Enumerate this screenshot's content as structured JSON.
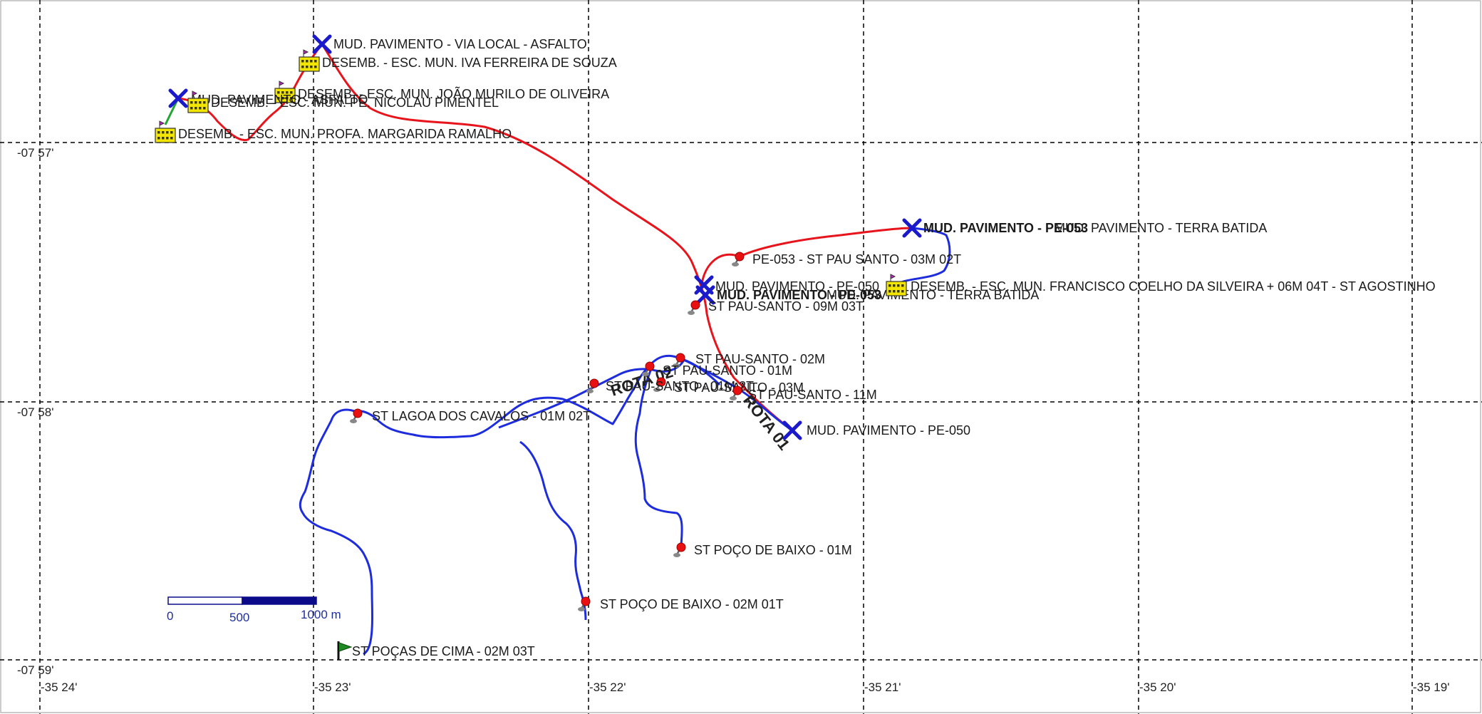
{
  "map": {
    "lon_labels": [
      "-35 24'",
      "-35 23'",
      "-35 22'",
      "-35 21'",
      "-35 20'",
      "-35 19'"
    ],
    "lat_labels": [
      "-07 57'",
      "-07 58'",
      "-07 59'"
    ],
    "scale_bar": {
      "labels": [
        "0",
        "500",
        "1000 m"
      ]
    },
    "route_labels": [
      "ROTA 02",
      "ROTA 01"
    ],
    "colors": {
      "route_red": "#e8141c",
      "route_blue": "#1d2cdc",
      "route_green": "#22a632",
      "marker_x": "#1a1acc",
      "marker_pin": "#e81010",
      "school_icon": "#f2e600"
    },
    "places": [
      {
        "icon": "x-marker",
        "text": "MUD. PAVIMENTO - VIA LOCAL - ASFALTO",
        "bold": false
      },
      {
        "icon": "school-icon",
        "text": "DESEMB. - ESC. MUN. IVA FERREIRA DE SOUZA",
        "bold": false
      },
      {
        "icon": "school-icon",
        "text": "DESEMB. - ESC. MUN. JOÃO MURILO DE OLIVEIRA",
        "bold": false
      },
      {
        "icon": "x-marker",
        "text": "MUD. PAVIMENTO - ASFALTO",
        "bold": false
      },
      {
        "icon": "school-icon",
        "text": "DESEMB. - ESC. MUN. PE. NICOLAU PIMENTEL",
        "bold": false
      },
      {
        "icon": "school-icon",
        "text": "DESEMB. - ESC. MUN. PROFA. MARGARIDA RAMALHO",
        "bold": false
      },
      {
        "icon": "x-marker",
        "text": "MUD. PAVIMENTO - PE-053",
        "bold": true
      },
      {
        "icon": "none",
        "text": "MUD. PAVIMENTO - TERRA BATIDA",
        "bold": false
      },
      {
        "icon": "pin-icon",
        "text": "PE-053 - ST PAU SANTO - 03M 02T",
        "bold": false
      },
      {
        "icon": "x-marker",
        "text": "MUD. PAVIMENTO - PE-050",
        "bold": false
      },
      {
        "icon": "x-marker",
        "text": "MUD. PAVIMENTO - PE-053",
        "bold": true
      },
      {
        "icon": "none",
        "text": "MUD. PAVIMENTO - TERRA BATIDA",
        "bold": false
      },
      {
        "icon": "school-icon",
        "text": "DESEMB. - ESC. MUN. FRANCISCO COELHO DA SILVEIRA + 06M 04T - ST AGOSTINHO",
        "bold": false
      },
      {
        "icon": "pin-icon",
        "text": "ST PAU-SANTO - 09M 03T",
        "bold": false
      },
      {
        "icon": "pin-icon",
        "text": "ST PAU-SANTO - 02M",
        "bold": false
      },
      {
        "icon": "pin-icon",
        "text": "ST PAU-SANTO - 01M",
        "bold": false
      },
      {
        "icon": "pin-icon",
        "text": "ST PAU-SANTO - 03M",
        "bold": false
      },
      {
        "icon": "pin-icon",
        "text": "ST PAU-SANTO - 01M 2T",
        "bold": false
      },
      {
        "icon": "pin-icon",
        "text": "ST PAU-SANTO - 11M",
        "bold": false
      },
      {
        "icon": "x-marker",
        "text": "MUD. PAVIMENTO - PE-050",
        "bold": false
      },
      {
        "icon": "pin-icon",
        "text": "ST LAGOA DOS CAVALOS - 01M 02T",
        "bold": false
      },
      {
        "icon": "pin-icon",
        "text": "ST POÇO DE BAIXO - 01M",
        "bold": false
      },
      {
        "icon": "pin-icon",
        "text": "ST POÇO DE BAIXO - 02M 01T",
        "bold": false
      },
      {
        "icon": "flag-icon",
        "text": "ST POÇAS DE CIMA - 02M 03T",
        "bold": false
      }
    ]
  }
}
